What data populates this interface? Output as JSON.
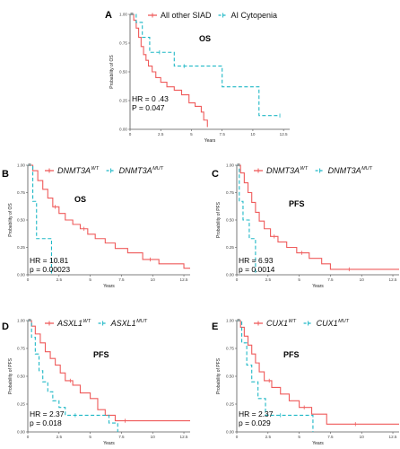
{
  "colors": {
    "wt": "#ef5b5b",
    "mut": "#1fb8c6",
    "axis": "#555555"
  },
  "chart_data": [
    {
      "id": "A",
      "letter": "A",
      "type": "line",
      "title": "OS",
      "ylabel": "Probability of OS",
      "xlabel": "Years",
      "xlim": [
        0,
        13
      ],
      "ylim": [
        0,
        1
      ],
      "xticks": [
        "0",
        "2.5",
        "5",
        "7.5",
        "10",
        "12.5"
      ],
      "yticks": [
        "0.00",
        "0.25",
        "0.50",
        "0.75",
        "1.00"
      ],
      "legend_position": "top",
      "stats": {
        "hr": "HR = 0 .43",
        "p": "P = 0.047"
      },
      "series": [
        {
          "name": "All other SIAD",
          "role": "wt",
          "times": [
            0,
            0.3,
            0.5,
            0.7,
            0.9,
            1.1,
            1.3,
            1.5,
            1.8,
            2.1,
            2.5,
            3.0,
            3.6,
            4.2,
            4.8,
            5.3,
            5.8,
            6.0,
            6.3
          ],
          "surv": [
            1.0,
            0.95,
            0.88,
            0.8,
            0.72,
            0.65,
            0.6,
            0.55,
            0.5,
            0.45,
            0.41,
            0.37,
            0.34,
            0.3,
            0.23,
            0.2,
            0.15,
            0.08,
            0.02
          ],
          "censor": []
        },
        {
          "name": "AI Cytopenia",
          "role": "mut",
          "times": [
            0,
            0.5,
            1.0,
            1.6,
            2.4,
            3.6,
            4.4,
            7.5,
            10.5,
            12.2
          ],
          "surv": [
            1.0,
            0.93,
            0.8,
            0.67,
            0.67,
            0.55,
            0.55,
            0.37,
            0.12,
            0.12
          ],
          "censor": [
            2.4,
            4.4,
            12.2
          ]
        }
      ]
    },
    {
      "id": "B",
      "letter": "B",
      "type": "line",
      "title": "OS",
      "ylabel": "Probability of OS",
      "xlabel": "Years",
      "xlim": [
        0,
        13
      ],
      "ylim": [
        0,
        1
      ],
      "xticks": [
        "0",
        "2.5",
        "5",
        "7.5",
        "10",
        "12.5"
      ],
      "yticks": [
        "0.00",
        "0.25",
        "0.50",
        "0.75",
        "1.00"
      ],
      "legend_position": "top",
      "stats": {
        "hr": "HR = 10.81",
        "p": "p = 0.00023"
      },
      "series": [
        {
          "name": "DNMT3A",
          "sup": "WT",
          "role": "wt",
          "times": [
            0,
            0.4,
            0.8,
            1.2,
            1.6,
            2.0,
            2.5,
            3.0,
            3.6,
            4.2,
            4.8,
            5.4,
            6.2,
            7.0,
            8.0,
            9.2,
            10.5,
            12.5,
            13
          ],
          "surv": [
            1.0,
            0.95,
            0.86,
            0.78,
            0.7,
            0.62,
            0.56,
            0.5,
            0.46,
            0.42,
            0.37,
            0.33,
            0.29,
            0.24,
            0.2,
            0.14,
            0.1,
            0.06,
            0.06
          ],
          "censor": [
            2.2,
            4.5,
            9.8
          ]
        },
        {
          "name": "DNMT3A",
          "sup": "MUT",
          "role": "mut",
          "times": [
            0,
            0.4,
            0.7,
            1.2,
            1.9
          ],
          "surv": [
            1.0,
            0.67,
            0.33,
            0.33,
            0.0
          ],
          "censor": []
        }
      ]
    },
    {
      "id": "C",
      "letter": "C",
      "type": "line",
      "title": "PFS",
      "ylabel": "Probability of PFS",
      "xlabel": "Years",
      "xlim": [
        0,
        13
      ],
      "ylim": [
        0,
        1
      ],
      "xticks": [
        "0",
        "2.5",
        "5",
        "7.5",
        "10",
        "12.5"
      ],
      "yticks": [
        "0.00",
        "0.25",
        "0.50",
        "0.75",
        "1.00"
      ],
      "legend_position": "top",
      "stats": {
        "hr": "HR = 6.93",
        "p": "p = 0.0014"
      },
      "series": [
        {
          "name": "DNMT3A",
          "sup": "WT",
          "role": "wt",
          "times": [
            0,
            0.3,
            0.6,
            0.9,
            1.2,
            1.5,
            1.8,
            2.2,
            2.7,
            3.3,
            4.0,
            4.8,
            5.8,
            6.8,
            7.5,
            13
          ],
          "surv": [
            1.0,
            0.93,
            0.84,
            0.75,
            0.66,
            0.57,
            0.49,
            0.42,
            0.35,
            0.3,
            0.25,
            0.2,
            0.15,
            0.1,
            0.05,
            0.05
          ],
          "censor": [
            3.0,
            5.2,
            9.0
          ]
        },
        {
          "name": "DNMT3A",
          "sup": "MUT",
          "role": "mut",
          "times": [
            0,
            0.2,
            0.5,
            1.0,
            1.5
          ],
          "surv": [
            1.0,
            0.67,
            0.5,
            0.33,
            0.0
          ],
          "censor": []
        }
      ]
    },
    {
      "id": "D",
      "letter": "D",
      "type": "line",
      "title": "PFS",
      "ylabel": "Probability of PFS",
      "xlabel": "Years",
      "xlim": [
        0,
        13
      ],
      "ylim": [
        0,
        1
      ],
      "xticks": [
        "0",
        "2.5",
        "5",
        "7.5",
        "10",
        "12.5"
      ],
      "yticks": [
        "0.00",
        "0.25",
        "0.50",
        "0.75",
        "1.00"
      ],
      "legend_position": "top",
      "stats": {
        "hr": "HR = 2.37",
        "p": "p = 0.018"
      },
      "series": [
        {
          "name": "ASXL1",
          "sup": "WT",
          "role": "wt",
          "times": [
            0,
            0.3,
            0.6,
            1.0,
            1.4,
            1.8,
            2.2,
            2.6,
            3.0,
            3.6,
            4.2,
            5.0,
            5.6,
            6.2,
            7.0,
            13
          ],
          "surv": [
            1.0,
            0.95,
            0.88,
            0.8,
            0.72,
            0.66,
            0.6,
            0.53,
            0.46,
            0.42,
            0.35,
            0.3,
            0.2,
            0.15,
            0.1,
            0.1
          ],
          "censor": [
            3.4,
            7.8
          ]
        },
        {
          "name": "ASXL1",
          "sup": "MUT",
          "role": "mut",
          "times": [
            0,
            0.3,
            0.6,
            0.9,
            1.2,
            1.6,
            2.0,
            2.5,
            3.0,
            4.5,
            6.5,
            7.2
          ],
          "surv": [
            1.0,
            0.85,
            0.7,
            0.55,
            0.45,
            0.36,
            0.28,
            0.22,
            0.15,
            0.15,
            0.08,
            0.0
          ],
          "censor": [
            3.8
          ]
        }
      ]
    },
    {
      "id": "E",
      "letter": "E",
      "type": "line",
      "title": "PFS",
      "ylabel": "Probability of PFS",
      "xlabel": "Years",
      "xlim": [
        0,
        13
      ],
      "ylim": [
        0,
        1
      ],
      "xticks": [
        "0",
        "2.5",
        "5",
        "7.5",
        "10",
        "12.5"
      ],
      "yticks": [
        "0.00",
        "0.25",
        "0.50",
        "0.75",
        "1.00"
      ],
      "legend_position": "top",
      "stats": {
        "hr": "HR = 2.37",
        "p": "p = 0.029"
      },
      "series": [
        {
          "name": "CUX1",
          "sup": "WT",
          "role": "wt",
          "times": [
            0,
            0.3,
            0.6,
            0.9,
            1.2,
            1.5,
            1.8,
            2.2,
            2.8,
            3.5,
            4.2,
            5.0,
            6.0,
            7.2,
            13
          ],
          "surv": [
            1.0,
            0.94,
            0.86,
            0.78,
            0.7,
            0.62,
            0.54,
            0.46,
            0.4,
            0.34,
            0.28,
            0.22,
            0.16,
            0.07,
            0.07
          ],
          "censor": [
            2.6,
            5.4,
            9.5
          ]
        },
        {
          "name": "CUX1",
          "sup": "MUT",
          "role": "mut",
          "times": [
            0,
            0.4,
            0.8,
            1.2,
            1.7,
            2.3,
            5.8,
            6.1
          ],
          "surv": [
            1.0,
            0.8,
            0.6,
            0.45,
            0.3,
            0.15,
            0.15,
            0.0
          ],
          "censor": [
            3.5
          ]
        }
      ]
    }
  ]
}
